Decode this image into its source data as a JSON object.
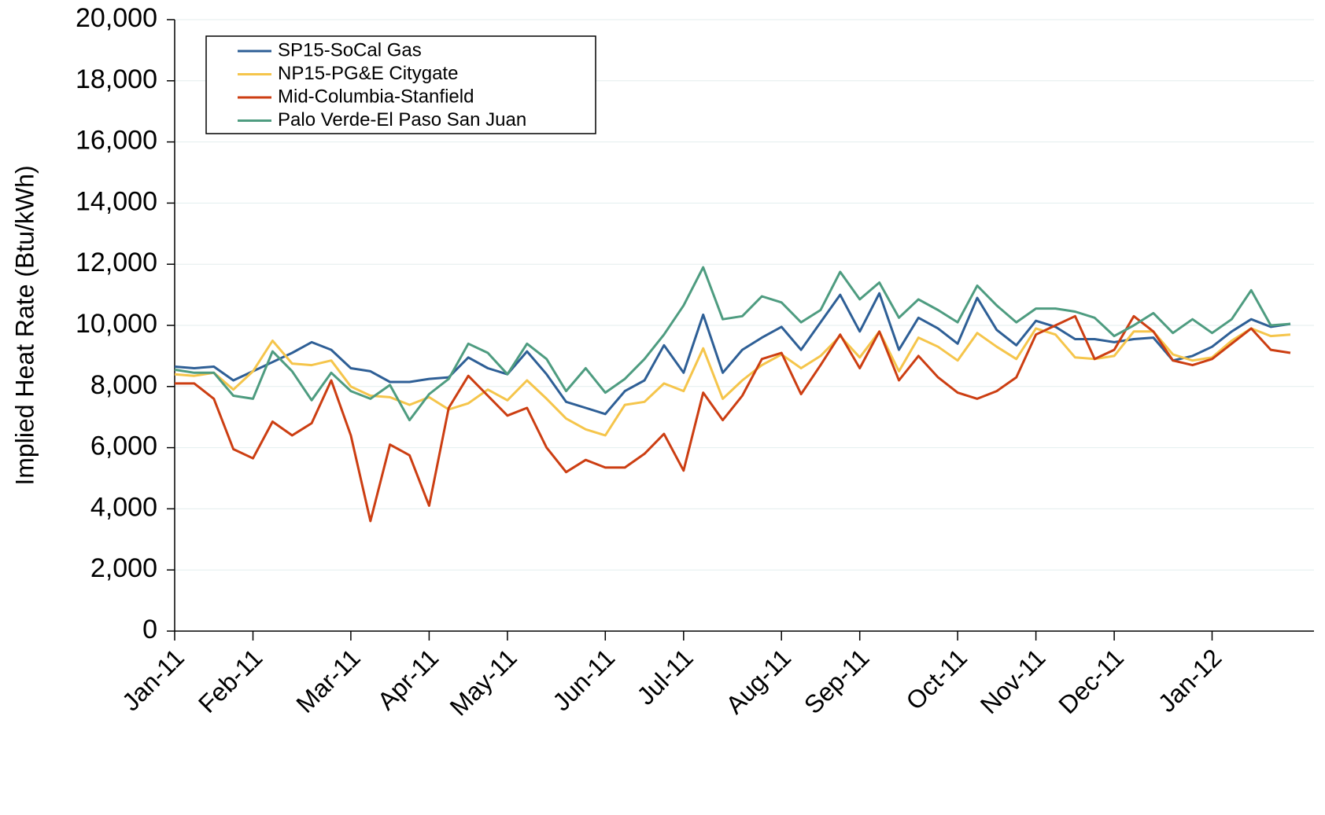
{
  "chart_data": {
    "type": "line",
    "y_label": "Implied Heat Rate (Btu/kWh)",
    "ylim": [
      0,
      20000
    ],
    "yticks": [
      {
        "value": 0,
        "label": "0"
      },
      {
        "value": 2000,
        "label": "2,000"
      },
      {
        "value": 4000,
        "label": "4,000"
      },
      {
        "value": 6000,
        "label": "6,000"
      },
      {
        "value": 8000,
        "label": "8,000"
      },
      {
        "value": 10000,
        "label": "10,000"
      },
      {
        "value": 12000,
        "label": "12,000"
      },
      {
        "value": 14000,
        "label": "14,000"
      },
      {
        "value": 16000,
        "label": "16,000"
      },
      {
        "value": 18000,
        "label": "18,000"
      },
      {
        "value": 20000,
        "label": "20,000"
      }
    ],
    "grid": true,
    "legend": "upper left",
    "categories": [
      "Jan-11",
      null,
      null,
      null,
      "Feb-11",
      null,
      null,
      null,
      null,
      "Mar-11",
      null,
      null,
      null,
      "Apr-11",
      null,
      null,
      null,
      "May-11",
      null,
      null,
      null,
      null,
      "Jun-11",
      null,
      null,
      null,
      "Jul-11",
      null,
      null,
      null,
      null,
      "Aug-11",
      null,
      null,
      null,
      "Sep-11",
      null,
      null,
      null,
      null,
      "Oct-11",
      null,
      null,
      null,
      "Nov-11",
      null,
      null,
      null,
      "Dec-11",
      null,
      null,
      null,
      null,
      "Jan-12",
      null,
      null,
      null,
      null
    ],
    "series": [
      {
        "name": "SP15-SoCal Gas",
        "color": "#2e5f96",
        "values": [
          8650,
          8600,
          8650,
          8200,
          8500,
          8800,
          9100,
          9450,
          9200,
          8600,
          8500,
          8150,
          8150,
          8250,
          8300,
          8950,
          8600,
          8400,
          9150,
          8400,
          7500,
          7300,
          7100,
          7850,
          8200,
          9350,
          8450,
          10350,
          8450,
          9200,
          9600,
          9950,
          9200,
          10100,
          11000,
          9800,
          11050,
          9200,
          10250,
          9900,
          9400,
          10900,
          9850,
          9350,
          10150,
          9950,
          9550,
          9550,
          9450,
          9550,
          9600,
          8850,
          9000,
          9300,
          9800,
          10200,
          9950,
          10050
        ]
      },
      {
        "name": "NP15-PG&E Citygate",
        "color": "#f5c54b",
        "values": [
          8400,
          8350,
          8450,
          7900,
          8500,
          9500,
          8750,
          8700,
          8850,
          8000,
          7700,
          7650,
          7400,
          7650,
          7250,
          7450,
          7900,
          7550,
          8200,
          7600,
          6950,
          6600,
          6400,
          7400,
          7500,
          8100,
          7850,
          9250,
          7600,
          8200,
          8700,
          9050,
          8600,
          9000,
          9650,
          8950,
          9800,
          8500,
          9600,
          9300,
          8850,
          9750,
          9300,
          8900,
          9900,
          9700,
          8950,
          8900,
          9000,
          9800,
          9800,
          9050,
          8850,
          8950,
          9500,
          9900,
          9650,
          9700
        ]
      },
      {
        "name": "Mid-Columbia-Stanfield",
        "color": "#cc3e12",
        "values": [
          8100,
          8100,
          7600,
          5950,
          5650,
          6850,
          6400,
          6800,
          8200,
          6400,
          3600,
          6100,
          5750,
          4100,
          7300,
          8350,
          7700,
          7050,
          7300,
          6000,
          5200,
          5600,
          5350,
          5350,
          5800,
          6450,
          5250,
          7800,
          6900,
          7700,
          8900,
          9100,
          7750,
          8700,
          9700,
          8600,
          9800,
          8200,
          9000,
          8300,
          7800,
          7600,
          7850,
          8300,
          9700,
          10000,
          10300,
          8900,
          9200,
          10300,
          9800,
          8850,
          8700,
          8900,
          9400,
          9900,
          9200,
          9100
        ]
      },
      {
        "name": "Palo Verde-El Paso San Juan",
        "color": "#4e9c80",
        "values": [
          8550,
          8450,
          8450,
          7700,
          7600,
          9150,
          8500,
          7550,
          8450,
          7850,
          7600,
          8050,
          6900,
          7750,
          8250,
          9400,
          9100,
          8400,
          9400,
          8900,
          7850,
          8600,
          7800,
          8250,
          8900,
          9700,
          10650,
          11900,
          10200,
          10300,
          10950,
          10750,
          10100,
          10500,
          11750,
          10850,
          11400,
          10250,
          10850,
          10500,
          10100,
          11300,
          10650,
          10100,
          10550,
          10550,
          10450,
          10250,
          9650,
          10000,
          10400,
          9750,
          10200,
          9750,
          10200,
          11150,
          10000,
          10050
        ]
      }
    ]
  }
}
